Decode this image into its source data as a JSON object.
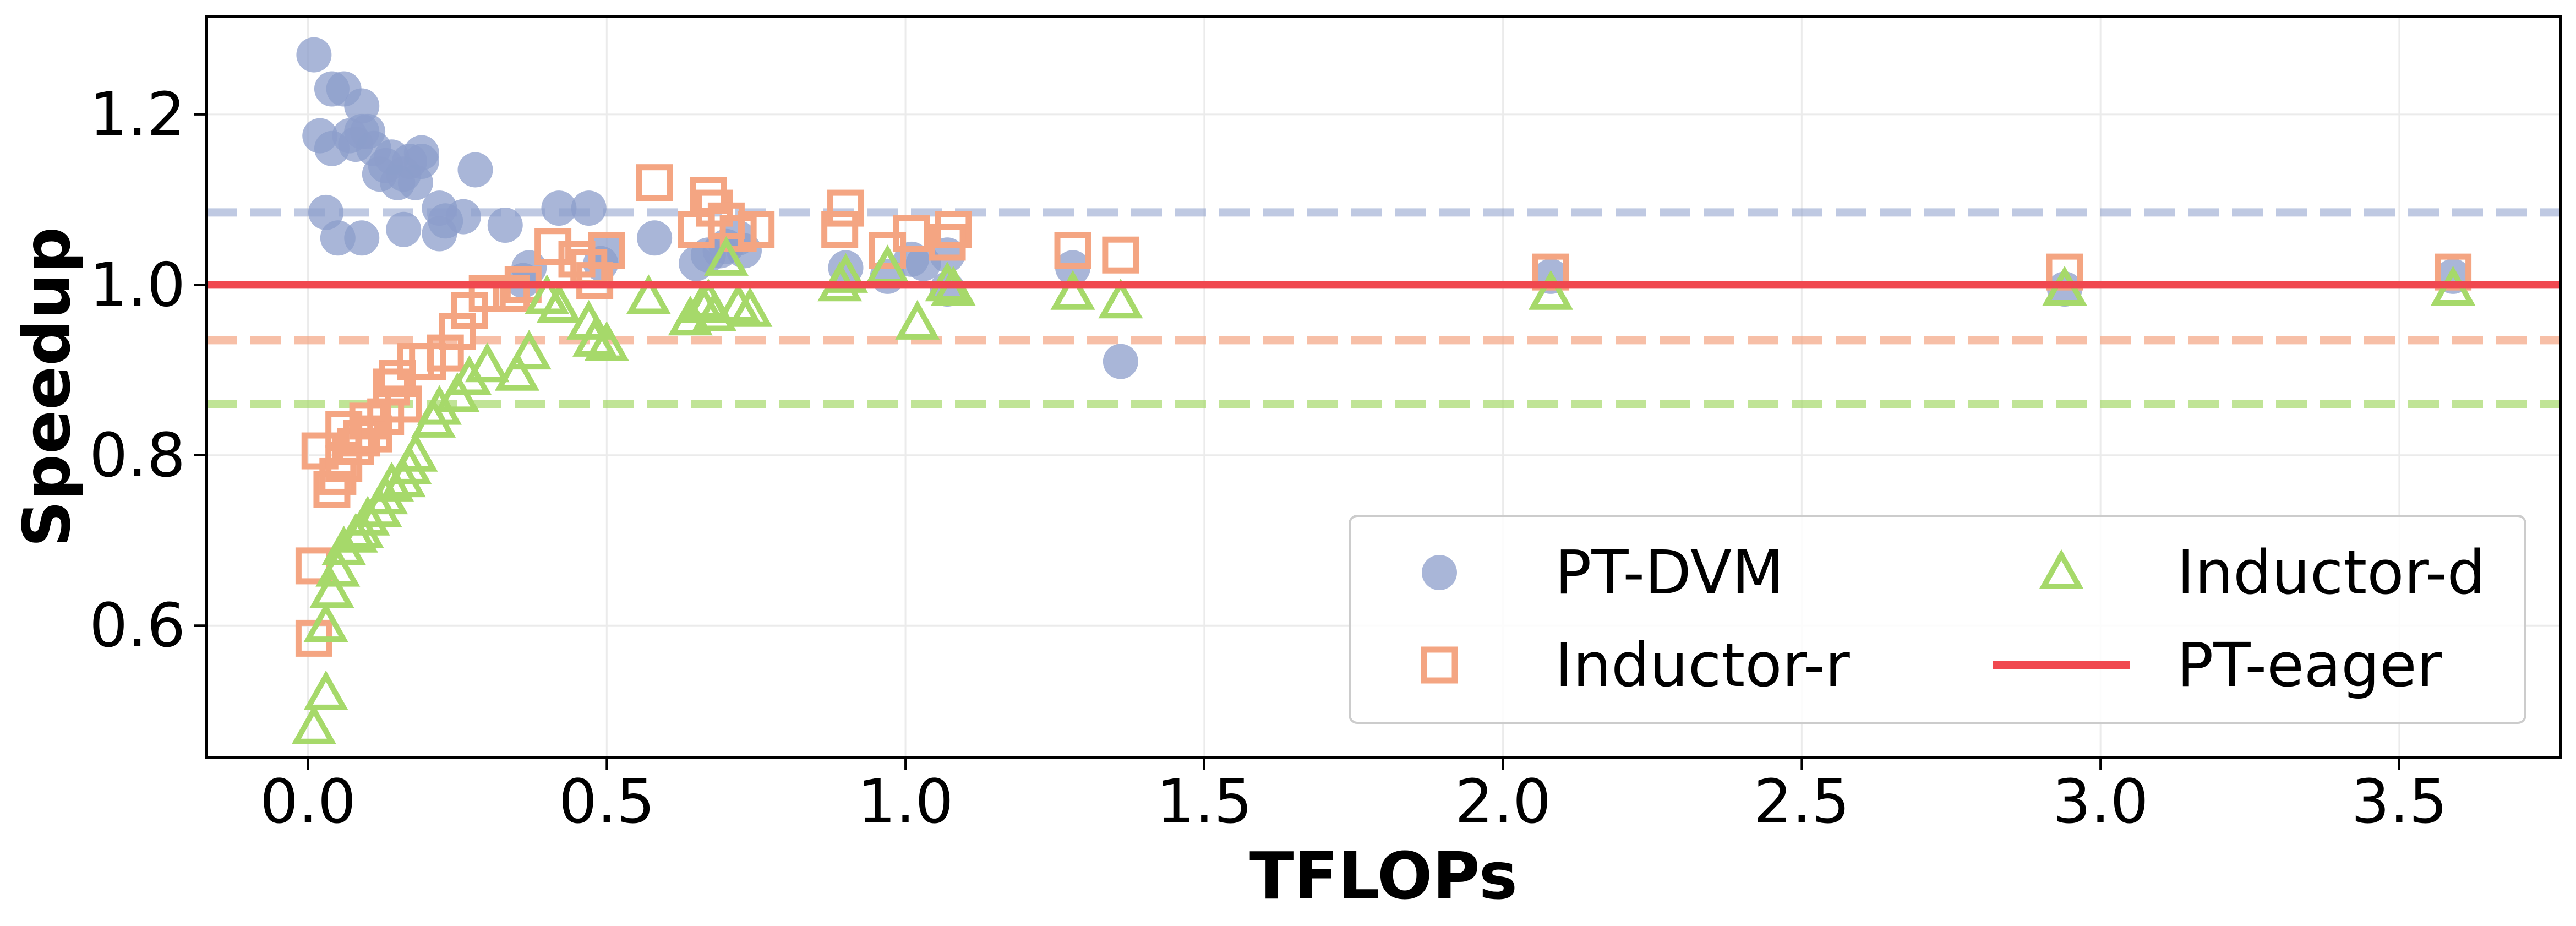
{
  "chart_data": {
    "type": "scatter",
    "title": "",
    "xlabel": "TFLOPs",
    "ylabel": "Speedup",
    "xlim": [
      -0.17,
      3.77
    ],
    "ylim": [
      0.445,
      1.315
    ],
    "xticks": [
      0.0,
      0.5,
      1.0,
      1.5,
      2.0,
      2.5,
      3.0,
      3.5
    ],
    "xtick_labels": [
      "0.0",
      "0.5",
      "1.0",
      "1.5",
      "2.0",
      "2.5",
      "3.0",
      "3.5"
    ],
    "yticks": [
      0.6,
      0.8,
      1.0,
      1.2
    ],
    "ytick_labels": [
      "0.6",
      "0.8",
      "1.0",
      "1.2"
    ],
    "grid": true,
    "legend_position": "lower-right",
    "series": [
      {
        "name": "PT-DVM",
        "marker": "circle",
        "color": "#8c9ecb",
        "mean_line": 1.085,
        "points": [
          [
            0.01,
            1.27
          ],
          [
            0.02,
            1.175
          ],
          [
            0.03,
            1.085
          ],
          [
            0.04,
            1.16
          ],
          [
            0.04,
            1.23
          ],
          [
            0.05,
            1.055
          ],
          [
            0.06,
            1.23
          ],
          [
            0.07,
            1.175
          ],
          [
            0.08,
            1.165
          ],
          [
            0.09,
            1.18
          ],
          [
            0.09,
            1.21
          ],
          [
            0.09,
            1.055
          ],
          [
            0.1,
            1.18
          ],
          [
            0.11,
            1.16
          ],
          [
            0.12,
            1.13
          ],
          [
            0.13,
            1.14
          ],
          [
            0.14,
            1.15
          ],
          [
            0.15,
            1.12
          ],
          [
            0.16,
            1.065
          ],
          [
            0.16,
            1.13
          ],
          [
            0.17,
            1.145
          ],
          [
            0.18,
            1.12
          ],
          [
            0.19,
            1.155
          ],
          [
            0.19,
            1.145
          ],
          [
            0.22,
            1.09
          ],
          [
            0.22,
            1.06
          ],
          [
            0.23,
            1.075
          ],
          [
            0.26,
            1.08
          ],
          [
            0.28,
            1.135
          ],
          [
            0.33,
            1.07
          ],
          [
            0.36,
            1.005
          ],
          [
            0.37,
            1.02
          ],
          [
            0.42,
            1.09
          ],
          [
            0.47,
            1.09
          ],
          [
            0.49,
            1.025
          ],
          [
            0.5,
            1.04
          ],
          [
            0.58,
            1.055
          ],
          [
            0.65,
            1.025
          ],
          [
            0.67,
            1.035
          ],
          [
            0.69,
            1.04
          ],
          [
            0.7,
            1.045
          ],
          [
            0.72,
            1.055
          ],
          [
            0.73,
            1.04
          ],
          [
            0.9,
            1.02
          ],
          [
            0.97,
            1.01
          ],
          [
            1.01,
            1.03
          ],
          [
            1.03,
            1.025
          ],
          [
            1.07,
            1.035
          ],
          [
            1.07,
            0.995
          ],
          [
            1.28,
            1.02
          ],
          [
            1.36,
            0.91
          ],
          [
            2.08,
            1.01
          ],
          [
            2.94,
            0.995
          ],
          [
            3.59,
            1.01
          ]
        ]
      },
      {
        "name": "Inductor-r",
        "marker": "square",
        "color": "#f4a582",
        "mean_line": 0.935,
        "points": [
          [
            0.01,
            0.585
          ],
          [
            0.01,
            0.67
          ],
          [
            0.02,
            0.805
          ],
          [
            0.04,
            0.76
          ],
          [
            0.05,
            0.775
          ],
          [
            0.06,
            0.79
          ],
          [
            0.06,
            0.83
          ],
          [
            0.08,
            0.81
          ],
          [
            0.09,
            0.82
          ],
          [
            0.1,
            0.84
          ],
          [
            0.11,
            0.825
          ],
          [
            0.13,
            0.845
          ],
          [
            0.14,
            0.88
          ],
          [
            0.15,
            0.89
          ],
          [
            0.16,
            0.86
          ],
          [
            0.18,
            0.91
          ],
          [
            0.2,
            0.91
          ],
          [
            0.23,
            0.92
          ],
          [
            0.25,
            0.945
          ],
          [
            0.27,
            0.97
          ],
          [
            0.3,
            0.99
          ],
          [
            0.34,
            0.99
          ],
          [
            0.36,
            1.0
          ],
          [
            0.41,
            1.045
          ],
          [
            0.45,
            1.03
          ],
          [
            0.47,
            1.02
          ],
          [
            0.48,
            1.005
          ],
          [
            0.5,
            1.04
          ],
          [
            0.58,
            1.12
          ],
          [
            0.65,
            1.065
          ],
          [
            0.67,
            1.105
          ],
          [
            0.68,
            1.09
          ],
          [
            0.7,
            1.075
          ],
          [
            0.72,
            1.06
          ],
          [
            0.75,
            1.065
          ],
          [
            0.89,
            1.065
          ],
          [
            0.9,
            1.09
          ],
          [
            0.97,
            1.04
          ],
          [
            1.01,
            1.06
          ],
          [
            1.07,
            1.05
          ],
          [
            1.08,
            1.065
          ],
          [
            1.28,
            1.04
          ],
          [
            1.36,
            1.035
          ],
          [
            2.08,
            1.015
          ],
          [
            2.94,
            1.015
          ],
          [
            3.59,
            1.015
          ]
        ]
      },
      {
        "name": "Inductor-d",
        "marker": "triangle",
        "color": "#a6d96a",
        "mean_line": 0.86,
        "points": [
          [
            0.01,
            0.48
          ],
          [
            0.03,
            0.52
          ],
          [
            0.03,
            0.6
          ],
          [
            0.04,
            0.64
          ],
          [
            0.05,
            0.665
          ],
          [
            0.06,
            0.69
          ],
          [
            0.08,
            0.705
          ],
          [
            0.09,
            0.71
          ],
          [
            0.1,
            0.725
          ],
          [
            0.12,
            0.735
          ],
          [
            0.13,
            0.75
          ],
          [
            0.14,
            0.765
          ],
          [
            0.16,
            0.77
          ],
          [
            0.17,
            0.785
          ],
          [
            0.18,
            0.8
          ],
          [
            0.21,
            0.84
          ],
          [
            0.22,
            0.855
          ],
          [
            0.25,
            0.87
          ],
          [
            0.27,
            0.89
          ],
          [
            0.3,
            0.905
          ],
          [
            0.35,
            0.895
          ],
          [
            0.37,
            0.92
          ],
          [
            0.4,
            0.985
          ],
          [
            0.42,
            0.975
          ],
          [
            0.47,
            0.955
          ],
          [
            0.48,
            0.935
          ],
          [
            0.5,
            0.93
          ],
          [
            0.57,
            0.985
          ],
          [
            0.64,
            0.96
          ],
          [
            0.66,
            0.975
          ],
          [
            0.67,
            0.98
          ],
          [
            0.68,
            0.965
          ],
          [
            0.7,
            1.03
          ],
          [
            0.72,
            0.975
          ],
          [
            0.74,
            0.97
          ],
          [
            0.89,
            1.0
          ],
          [
            0.9,
            1.01
          ],
          [
            0.97,
            1.02
          ],
          [
            1.02,
            0.955
          ],
          [
            1.07,
            1.0
          ],
          [
            1.08,
            0.995
          ],
          [
            1.28,
            0.99
          ],
          [
            1.36,
            0.98
          ],
          [
            2.08,
            0.99
          ],
          [
            2.94,
            0.995
          ],
          [
            3.59,
            0.995
          ]
        ]
      },
      {
        "name": "PT-eager",
        "marker": "line",
        "color": "#f0484f",
        "y": 1.0
      }
    ]
  }
}
